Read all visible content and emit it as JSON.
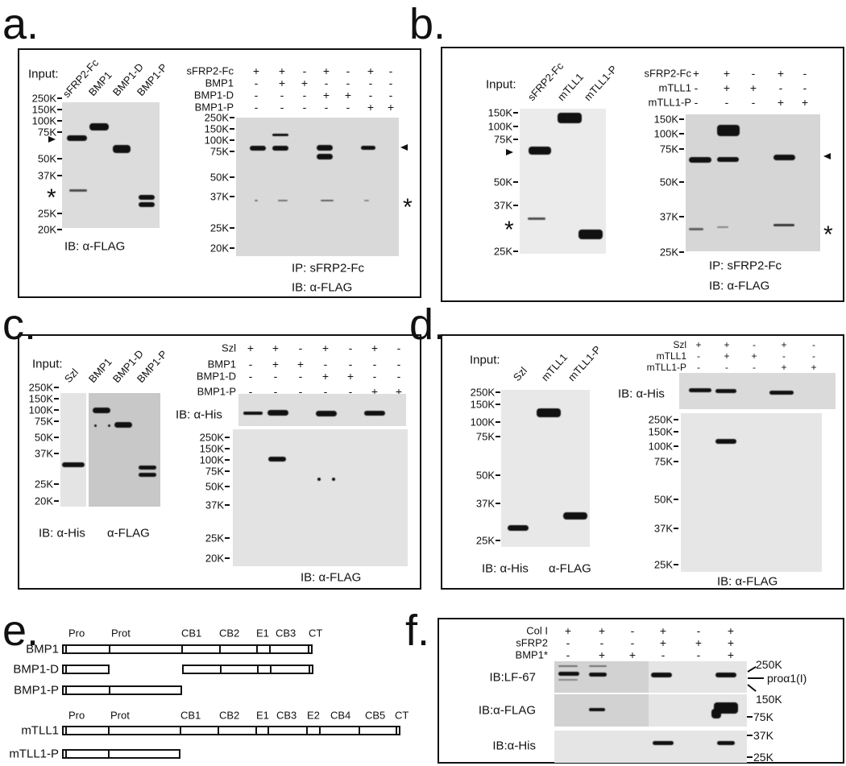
{
  "panels": {
    "a": {
      "label": "a.",
      "input_label": "Input:",
      "lanes": [
        "sFRP2-Fc",
        "BMP1",
        "BMP1-D",
        "BMP1-P"
      ],
      "conditions": [
        {
          "name": "sFRP2-Fc",
          "values": [
            "+",
            "+",
            "-",
            "+",
            "-",
            "+",
            "-"
          ]
        },
        {
          "name": "BMP1",
          "values": [
            "-",
            "+",
            "+",
            "-",
            "-",
            "-",
            "-"
          ]
        },
        {
          "name": "BMP1-D",
          "values": [
            "-",
            "-",
            "-",
            "+",
            "+",
            "-",
            "-"
          ]
        },
        {
          "name": "BMP1-P",
          "values": [
            "-",
            "-",
            "-",
            "-",
            "-",
            "+",
            "+"
          ]
        }
      ],
      "gels": [
        {
          "markers": [
            "250K",
            "150K",
            "100K",
            "75K",
            "50K",
            "37K",
            "25K",
            "20K"
          ]
        },
        {
          "markers": [
            "250K",
            "150K",
            "100K",
            "75K",
            "50K",
            "37K",
            "25K",
            "20K"
          ]
        }
      ],
      "captions": [
        "IB: α-FLAG",
        "IP: sFRP2-Fc",
        "IB: α-FLAG"
      ],
      "asterisk": "*"
    },
    "b": {
      "label": "b.",
      "input_label": "Input:",
      "lanes": [
        "sFRP2-Fc",
        "mTLL1",
        "mTLL1-P"
      ],
      "conditions": [
        {
          "name": "sFRP2-Fc",
          "values": [
            "+",
            "+",
            "-",
            "+",
            "-"
          ]
        },
        {
          "name": "mTLL1",
          "values": [
            "-",
            "+",
            "+",
            "-",
            "-"
          ]
        },
        {
          "name": "mTLL1-P",
          "values": [
            "-",
            "-",
            "-",
            "+",
            "+"
          ]
        }
      ],
      "gels": [
        {
          "markers": [
            "150K",
            "100K",
            "75K",
            "50K",
            "37K",
            "25K"
          ]
        },
        {
          "markers": [
            "150K",
            "100K",
            "75K",
            "50K",
            "37K",
            "25K"
          ]
        }
      ],
      "captions": [
        "IP: sFRP2-Fc",
        "IB: α-FLAG"
      ],
      "asterisk": "*"
    },
    "c": {
      "label": "c.",
      "input_label": "Input:",
      "lanes": [
        "Szl",
        "BMP1",
        "BMP1-D",
        "BMP1-P"
      ],
      "conditions": [
        {
          "name": "Szl",
          "values": [
            "+",
            "+",
            "-",
            "+",
            "-",
            "+",
            "-"
          ]
        },
        {
          "name": "BMP1",
          "values": [
            "-",
            "+",
            "+",
            "-",
            "-",
            "-",
            "-"
          ]
        },
        {
          "name": "BMP1-D",
          "values": [
            "-",
            "-",
            "-",
            "+",
            "+",
            "-",
            "-"
          ]
        },
        {
          "name": "BMP1-P",
          "values": [
            "-",
            "-",
            "-",
            "-",
            "-",
            "+",
            "+"
          ]
        }
      ],
      "gels": [
        {
          "markers": [
            "250K",
            "150K",
            "100K",
            "75K",
            "50K",
            "37K",
            "25K",
            "20K"
          ]
        },
        {},
        {
          "label": "IB: α-His"
        },
        {
          "markers": [
            "250K",
            "150K",
            "100K",
            "75K",
            "50K",
            "37K",
            "25K",
            "20K"
          ]
        }
      ],
      "captions": [
        "IB: α-His",
        "α-FLAG",
        "IB: α-FLAG"
      ]
    },
    "d": {
      "label": "d.",
      "input_label": "Input:",
      "lanes": [
        "Szl",
        "mTLL1",
        "mTLL1-P"
      ],
      "conditions": [
        {
          "name": "Szl",
          "values": [
            "+",
            "+",
            "-",
            "+",
            "-"
          ]
        },
        {
          "name": "mTLL1",
          "values": [
            "-",
            "+",
            "+",
            "-",
            "-"
          ]
        },
        {
          "name": "mTLL1-P",
          "values": [
            "-",
            "-",
            "-",
            "+",
            "+"
          ]
        }
      ],
      "gels": [
        {
          "markers": [
            "250K",
            "150K",
            "100K",
            "75K",
            "50K",
            "37K",
            "25K"
          ]
        },
        {
          "label": "IB: α-His"
        },
        {
          "markers": [
            "250K",
            "150K",
            "100K",
            "75K",
            "50K",
            "37K",
            "25K"
          ]
        }
      ],
      "captions": [
        "IB: α-His",
        "α-FLAG",
        "IB: α-FLAG"
      ]
    },
    "e": {
      "label": "e.",
      "constructs": [
        "BMP1",
        "BMP1-D",
        "BMP1-P",
        "mTLL1",
        "mTLL1-P"
      ],
      "domains_bmp1": [
        "Pro",
        "Prot",
        "CB1",
        "CB2",
        "E1",
        "CB3",
        "CT"
      ],
      "domains_tll1": [
        "Pro",
        "Prot",
        "CB1",
        "CB2",
        "E1",
        "CB3",
        "E2",
        "CB4",
        "CB5",
        "CT"
      ]
    },
    "f": {
      "label": "f.",
      "conditions": [
        {
          "name": "Col I",
          "values": [
            "+",
            "+",
            "-",
            "+",
            "-",
            "+"
          ]
        },
        {
          "name": "sFRP2",
          "values": [
            "-",
            "-",
            "-",
            "+",
            "+",
            "+"
          ]
        },
        {
          "name": "BMP1*",
          "values": [
            "-",
            "+",
            "+",
            "-",
            "-",
            "+"
          ]
        }
      ],
      "gels": [
        {
          "label": "IB:LF-67"
        },
        {
          "label": "IB:α-FLAG"
        },
        {
          "label": "IB:α-His"
        }
      ],
      "right_labels": [
        "250K",
        "proα1(I)",
        "150K",
        "75K",
        "37K",
        "25K"
      ]
    }
  }
}
